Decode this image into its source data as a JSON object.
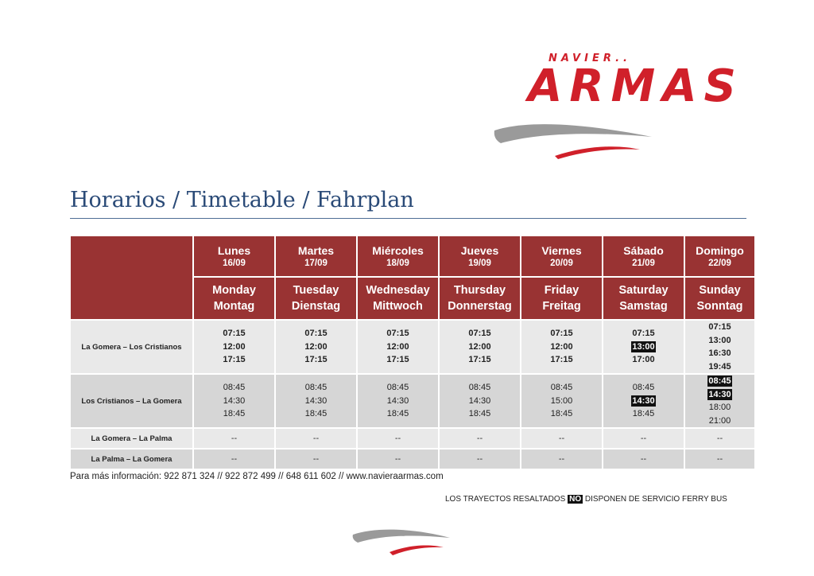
{
  "brand": {
    "top": "NAVIER..",
    "main": "ARMAS",
    "colors": {
      "red": "#d0202a",
      "gray": "#8c8c8c"
    }
  },
  "title": "Horarios / Timetable / Fahrplan",
  "days": [
    {
      "es": "Lunes",
      "date": "16/09",
      "en": "Monday",
      "de": "Montag"
    },
    {
      "es": "Martes",
      "date": "17/09",
      "en": "Tuesday",
      "de": "Dienstag"
    },
    {
      "es": "Miércoles",
      "date": "18/09",
      "en": "Wednesday",
      "de": "Mittwoch"
    },
    {
      "es": "Jueves",
      "date": "19/09",
      "en": "Thursday",
      "de": "Donnerstag"
    },
    {
      "es": "Viernes",
      "date": "20/09",
      "en": "Friday",
      "de": "Freitag"
    },
    {
      "es": "Sábado",
      "date": "21/09",
      "en": "Saturday",
      "de": "Samstag"
    },
    {
      "es": "Domingo",
      "date": "22/09",
      "en": "Sunday",
      "de": "Sonntag"
    }
  ],
  "routes": [
    {
      "name": "La Gomera – Los Cristianos",
      "bold": true,
      "times": [
        [
          "07:15",
          "12:00",
          "17:15"
        ],
        [
          "07:15",
          "12:00",
          "17:15"
        ],
        [
          "07:15",
          "12:00",
          "17:15"
        ],
        [
          "07:15",
          "12:00",
          "17:15"
        ],
        [
          "07:15",
          "12:00",
          "17:15"
        ],
        [
          "07:15",
          "13:00",
          "17:00"
        ],
        [
          "07:15",
          "13:00",
          "16:30",
          "19:45"
        ]
      ],
      "highlighted": {
        "5": [
          1
        ]
      }
    },
    {
      "name": "Los Cristianos – La Gomera",
      "bold": false,
      "times": [
        [
          "08:45",
          "14:30",
          "18:45"
        ],
        [
          "08:45",
          "14:30",
          "18:45"
        ],
        [
          "08:45",
          "14:30",
          "18:45"
        ],
        [
          "08:45",
          "14:30",
          "18:45"
        ],
        [
          "08:45",
          "15:00",
          "18:45"
        ],
        [
          "08:45",
          "14:30",
          "18:45"
        ],
        [
          "08:45",
          "14:30",
          "18:00",
          "21:00"
        ]
      ],
      "highlighted": {
        "5": [
          1
        ],
        "6": [
          0,
          1
        ]
      }
    },
    {
      "name": "La Gomera – La Palma",
      "dash": "--"
    },
    {
      "name": "La Palma – La Gomera",
      "dash": "--"
    }
  ],
  "info": "Para más información: 922 871 324 // 922 872 499 //  648 611 602 // www.navieraarmas.com",
  "note": {
    "before": "LOS  TRAYECTOS RESALTADOS ",
    "highlight": "NO",
    "after": " DISPONEN DE SERVICIO FERRY BUS"
  }
}
